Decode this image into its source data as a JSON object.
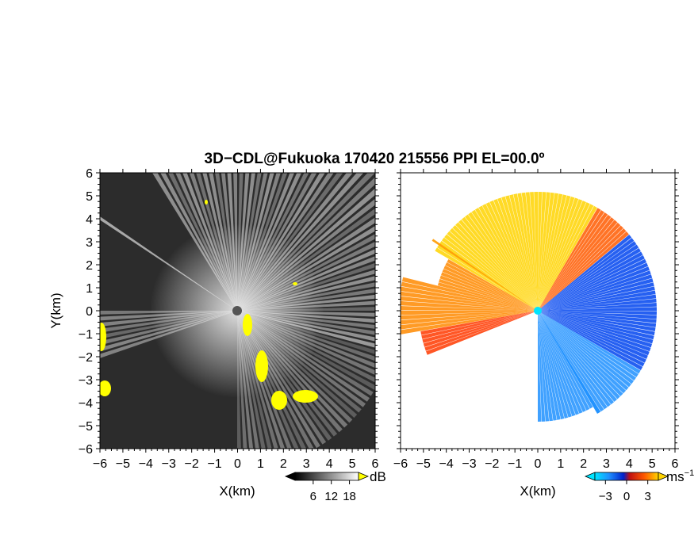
{
  "title": "3D−CDL@Fukuoka 170420 215556 PPI EL=00.0º",
  "chart_data": [
    {
      "type": "heatmap",
      "panel": "reflectivity",
      "xlabel": "X(km)",
      "ylabel": "Y(km)",
      "xlim": [
        -6,
        6
      ],
      "ylim": [
        -6,
        6
      ],
      "xticks": [
        "−6",
        "−5",
        "−4",
        "−3",
        "−2",
        "−1",
        "0",
        "1",
        "2",
        "3",
        "4",
        "5",
        "6"
      ],
      "yticks": [
        "−6",
        "−5",
        "−4",
        "−3",
        "−2",
        "−1",
        "0",
        "1",
        "2",
        "3",
        "4",
        "5",
        "6"
      ],
      "colorbar": {
        "unit": "dB",
        "ticks": [
          "6",
          "12",
          "18"
        ],
        "tick_values": [
          6,
          12,
          18
        ],
        "range": [
          0,
          21
        ],
        "colors": [
          "#000000",
          "#ffffff"
        ],
        "flag_color": "#ffff00"
      }
    },
    {
      "type": "heatmap",
      "panel": "doppler velocity",
      "xlabel": "X(km)",
      "ylabel": "",
      "xlim": [
        -6,
        6
      ],
      "ylim": [
        -6,
        6
      ],
      "xticks": [
        "−6",
        "−5",
        "−4",
        "−3",
        "−2",
        "−1",
        "0",
        "1",
        "2",
        "3",
        "4",
        "5",
        "6"
      ],
      "colorbar": {
        "unit": "ms",
        "unit_exponent": "−1",
        "ticks": [
          "−3",
          "0",
          "3"
        ],
        "tick_values": [
          -3,
          0,
          3
        ],
        "range": [
          -4.5,
          4.5
        ],
        "colors": [
          "#00e5ff",
          "#1e90ff",
          "#0022cc",
          "#c01010",
          "#ff5a00",
          "#ffd400"
        ]
      }
    }
  ]
}
